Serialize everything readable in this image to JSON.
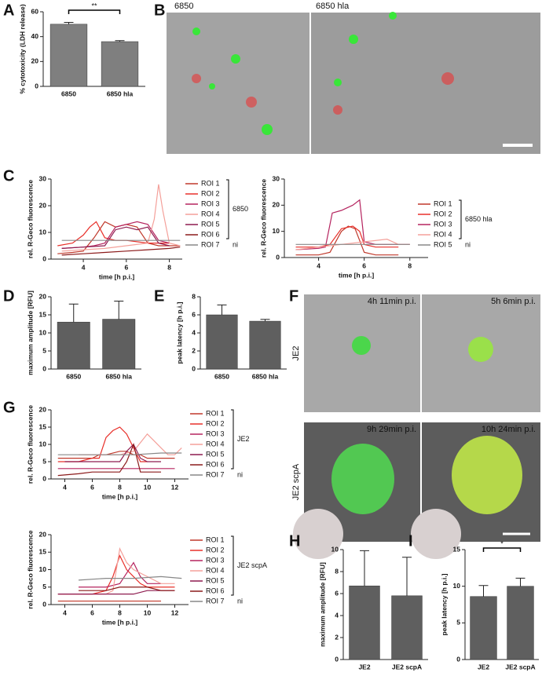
{
  "panel_labels": [
    "A",
    "B",
    "C",
    "D",
    "E",
    "F",
    "G",
    "H",
    "I"
  ],
  "image_labels": {
    "B": [
      "6850",
      "6850 hla"
    ],
    "F_times": [
      "4h 11min p.i.",
      "5h 6min p.i.",
      "9h 29min p.i.",
      "10h 24min p.i."
    ],
    "F_strains": [
      "JE2",
      "JE2 scpA"
    ]
  },
  "chart_data": [
    {
      "type": "bar",
      "y_label": "% cytotoxicity (LDH release)",
      "categories": [
        "6850",
        "6850 hla"
      ],
      "values": [
        50,
        36
      ],
      "errors": [
        1.5,
        0.8
      ],
      "color": "#7f7f7f",
      "ylim": [
        0,
        60
      ],
      "yticks": [
        0,
        20,
        40,
        60
      ],
      "annotation": "**"
    },
    {
      "type": "line",
      "y_label": "rel. R-Geco fluorescence",
      "x_label": "time [h p.i.]",
      "xlim": [
        2.5,
        8.6
      ],
      "xticks": [
        4,
        6,
        8
      ],
      "ylim": [
        0,
        30
      ],
      "yticks": [
        0,
        10,
        20,
        30
      ],
      "legend_groups": [
        "6850",
        "ni"
      ],
      "series": [
        {
          "name": "ROI 1",
          "color": "#c0392b",
          "x": [
            2.8,
            3.5,
            4,
            4.5,
            5,
            5.5,
            6,
            6.5,
            7,
            7.5,
            8,
            8.5
          ],
          "values": [
            2,
            2.5,
            3,
            8,
            14,
            12,
            13,
            12,
            6,
            5,
            5,
            5
          ]
        },
        {
          "name": "ROI 2",
          "color": "#e8302a",
          "x": [
            2.8,
            3.5,
            4,
            4.3,
            4.6,
            5,
            5.5,
            6,
            7,
            8
          ],
          "values": [
            5,
            6,
            9,
            12,
            14,
            8,
            7,
            7,
            6,
            6
          ]
        },
        {
          "name": "ROI 3",
          "color": "#b5245f",
          "x": [
            3,
            4,
            4.5,
            5,
            5.5,
            6,
            6.5,
            7,
            7.5,
            8
          ],
          "values": [
            4,
            4.5,
            5,
            6,
            12,
            13,
            14,
            13,
            7,
            6
          ]
        },
        {
          "name": "ROI 4",
          "color": "#f4a09a",
          "x": [
            3,
            4,
            5,
            6,
            7,
            7.3,
            7.5,
            7.7,
            8,
            8.5
          ],
          "values": [
            3,
            3.5,
            4,
            5,
            6,
            15,
            28,
            18,
            6,
            5
          ]
        },
        {
          "name": "ROI 5",
          "color": "#8e1b4f",
          "x": [
            3,
            4,
            5,
            5.5,
            6,
            6.5,
            7,
            7.5,
            8
          ],
          "values": [
            4,
            4.5,
            5,
            11,
            12,
            11,
            12,
            6,
            5
          ]
        },
        {
          "name": "ROI 6",
          "color": "#8b1a1a",
          "x": [
            3,
            4,
            5,
            6,
            7,
            8,
            8.5
          ],
          "values": [
            1.5,
            2,
            2.5,
            3,
            3.5,
            4,
            4.5
          ]
        },
        {
          "name": "ROI 7",
          "color": "#888888",
          "x": [
            3,
            4,
            5,
            6,
            7,
            8,
            8.5
          ],
          "values": [
            7,
            7,
            7,
            7,
            7,
            7,
            7
          ]
        }
      ]
    },
    {
      "type": "line",
      "y_label": "rel. R-Geco fluorescence",
      "x_label": "time [h p.i.]",
      "xlim": [
        2.5,
        8.8
      ],
      "xticks": [
        4,
        6,
        8
      ],
      "ylim": [
        0,
        30
      ],
      "yticks": [
        0,
        10,
        20,
        30
      ],
      "legend_groups": [
        "6850 hla",
        "ni"
      ],
      "series": [
        {
          "name": "ROI 1",
          "color": "#c0392b",
          "x": [
            3,
            4,
            4.5,
            5,
            5.3,
            5.6,
            6,
            6.5,
            7,
            7.5
          ],
          "values": [
            1,
            1,
            2,
            10,
            12,
            11,
            2,
            1,
            1,
            1
          ]
        },
        {
          "name": "ROI 2",
          "color": "#e8302a",
          "x": [
            3,
            4,
            4.5,
            5,
            5.5,
            5.8,
            6,
            6.5,
            7,
            7.5
          ],
          "values": [
            4,
            4,
            5,
            11,
            12,
            10,
            5,
            4,
            4,
            4
          ]
        },
        {
          "name": "ROI 3",
          "color": "#b5245f",
          "x": [
            3,
            4,
            4.3,
            4.6,
            5,
            5.5,
            5.8,
            6,
            6.5,
            7,
            7.5,
            8
          ],
          "values": [
            3,
            3.5,
            4,
            17,
            18,
            20,
            22,
            6,
            5,
            5,
            5,
            5
          ]
        },
        {
          "name": "ROI 4",
          "color": "#f4a09a",
          "x": [
            3,
            4,
            5,
            6,
            7,
            7.5,
            8
          ],
          "values": [
            3,
            4,
            5,
            6,
            7,
            5,
            5
          ]
        },
        {
          "name": "ROI 5",
          "color": "#888888",
          "x": [
            3,
            4,
            5,
            6,
            7,
            8
          ],
          "values": [
            5,
            5,
            5,
            5,
            5,
            5
          ]
        }
      ]
    },
    {
      "type": "bar",
      "y_label": "maximum amplitude [RFU]",
      "categories": [
        "6850",
        "6850 hla"
      ],
      "values": [
        13,
        13.8
      ],
      "errors": [
        5,
        5
      ],
      "color": "#5f5f5f",
      "ylim": [
        0,
        20
      ],
      "yticks": [
        0,
        5,
        10,
        15,
        20
      ]
    },
    {
      "type": "bar",
      "y_label": "peak latency [h p.i.]",
      "categories": [
        "6850",
        "6850 hla"
      ],
      "values": [
        6,
        5.3
      ],
      "errors": [
        1.1,
        0.2
      ],
      "color": "#5f5f5f",
      "ylim": [
        0,
        8
      ],
      "yticks": [
        0,
        2,
        4,
        6,
        8
      ]
    },
    {
      "type": "line",
      "y_label": "rel. R-Geco fluorescence",
      "x_label": "time [h p.i.]",
      "xlim": [
        3,
        13
      ],
      "xticks": [
        4,
        6,
        8,
        10,
        12
      ],
      "ylim": [
        0,
        20
      ],
      "yticks": [
        0,
        5,
        10,
        15,
        20
      ],
      "legend_groups": [
        "JE2",
        "ni"
      ],
      "series": [
        {
          "name": "ROI 1",
          "color": "#c0392b",
          "x": [
            3.5,
            5,
            6,
            6.5,
            7,
            8,
            8.5,
            9,
            9.5,
            10,
            11,
            12
          ],
          "values": [
            6,
            6,
            6,
            7,
            7,
            8,
            8,
            7,
            7,
            6,
            6,
            6
          ]
        },
        {
          "name": "ROI 2",
          "color": "#e8302a",
          "x": [
            3.5,
            5,
            6,
            6.5,
            7,
            7.5,
            8,
            8.5,
            9,
            9.5,
            10
          ],
          "values": [
            5,
            5,
            6,
            6,
            12,
            14,
            15,
            13,
            9,
            5,
            5
          ]
        },
        {
          "name": "ROI 3",
          "color": "#b5245f",
          "x": [
            3.5,
            5,
            6,
            7,
            8,
            9,
            10,
            11,
            12
          ],
          "values": [
            3,
            3,
            3,
            3,
            3,
            3,
            3,
            3,
            3
          ]
        },
        {
          "name": "ROI 4",
          "color": "#f4a09a",
          "x": [
            5,
            6,
            7,
            8,
            9,
            10,
            10.5,
            11,
            11.5,
            12,
            12.5
          ],
          "values": [
            7,
            7,
            7,
            7,
            8,
            13,
            11,
            9,
            7,
            7,
            9
          ]
        },
        {
          "name": "ROI 5",
          "color": "#8e1b4f",
          "x": [
            4,
            5,
            6,
            7,
            8,
            8.5,
            9,
            9.5,
            10,
            11
          ],
          "values": [
            5,
            5,
            5,
            5,
            5,
            8,
            10,
            6,
            5,
            5
          ]
        },
        {
          "name": "ROI 6",
          "color": "#8b1a1a",
          "x": [
            3.5,
            5,
            6,
            7,
            8,
            8.5,
            9,
            9.5,
            10,
            11
          ],
          "values": [
            1,
            1.5,
            2,
            2,
            2,
            5,
            10,
            2,
            2,
            2
          ]
        },
        {
          "name": "ROI 7",
          "color": "#888888",
          "x": [
            3.5,
            5,
            7,
            9,
            11,
            12.5
          ],
          "values": [
            7,
            7,
            7,
            7,
            7.5,
            7.5
          ]
        }
      ]
    },
    {
      "type": "line",
      "y_label": "rel. R-Geco fluorescence",
      "x_label": "time [h p.i.]",
      "xlim": [
        3,
        13
      ],
      "xticks": [
        4,
        6,
        8,
        10,
        12
      ],
      "ylim": [
        0,
        20
      ],
      "yticks": [
        0,
        5,
        10,
        15,
        20
      ],
      "legend_groups": [
        "JE2 scpA",
        "ni"
      ],
      "series": [
        {
          "name": "ROI 1",
          "color": "#c0392b",
          "x": [
            3.5,
            5,
            6,
            7,
            8,
            9,
            10,
            11
          ],
          "values": [
            1,
            1,
            1,
            1,
            1,
            1,
            1,
            1
          ]
        },
        {
          "name": "ROI 2",
          "color": "#e8302a",
          "x": [
            3.5,
            5,
            6,
            7,
            7.5,
            8,
            8.5,
            9,
            9.5,
            10,
            11,
            12
          ],
          "values": [
            3,
            3,
            3,
            4,
            8,
            14,
            10,
            8,
            6,
            5,
            5,
            5
          ]
        },
        {
          "name": "ROI 3",
          "color": "#b5245f",
          "x": [
            5,
            6,
            7,
            8,
            9,
            9.5,
            10,
            11
          ],
          "values": [
            5,
            5,
            5,
            6,
            12,
            8,
            6,
            6
          ]
        },
        {
          "name": "ROI 4",
          "color": "#f4a09a",
          "x": [
            5,
            6,
            7,
            7.5,
            8,
            8.5,
            9,
            10,
            11,
            12
          ],
          "values": [
            3,
            3,
            3,
            4,
            16,
            12,
            10,
            8,
            6,
            6
          ]
        },
        {
          "name": "ROI 5",
          "color": "#8e1b4f",
          "x": [
            3.5,
            5,
            6,
            7,
            8,
            9,
            10,
            11,
            12
          ],
          "values": [
            3,
            3,
            3,
            3,
            3,
            3,
            4,
            4,
            4
          ]
        },
        {
          "name": "ROI 6",
          "color": "#8b1a1a",
          "x": [
            5,
            6,
            7,
            8,
            9,
            10,
            11,
            12
          ],
          "values": [
            4,
            4,
            4,
            5,
            5,
            5,
            4,
            4
          ]
        },
        {
          "name": "ROI 7",
          "color": "#888888",
          "x": [
            5,
            7,
            9,
            11,
            12.5
          ],
          "values": [
            7,
            7.5,
            7.5,
            8,
            7.5
          ]
        }
      ]
    },
    {
      "type": "bar",
      "y_label": "maximum amplitude [RFU]",
      "categories": [
        "JE2",
        "JE2 scpA"
      ],
      "values": [
        6.7,
        5.8
      ],
      "errors": [
        3.2,
        3.5
      ],
      "color": "#5f5f5f",
      "ylim": [
        0,
        10
      ],
      "yticks": [
        0,
        2,
        4,
        6,
        8,
        10
      ]
    },
    {
      "type": "bar",
      "y_label": "peak latency [h p.i.]",
      "categories": [
        "JE2",
        "JE2 scpA"
      ],
      "values": [
        8.6,
        10
      ],
      "errors": [
        1.5,
        1.1
      ],
      "color": "#5f5f5f",
      "ylim": [
        0,
        15
      ],
      "yticks": [
        0,
        5,
        10,
        15
      ],
      "annotation": "*"
    }
  ]
}
